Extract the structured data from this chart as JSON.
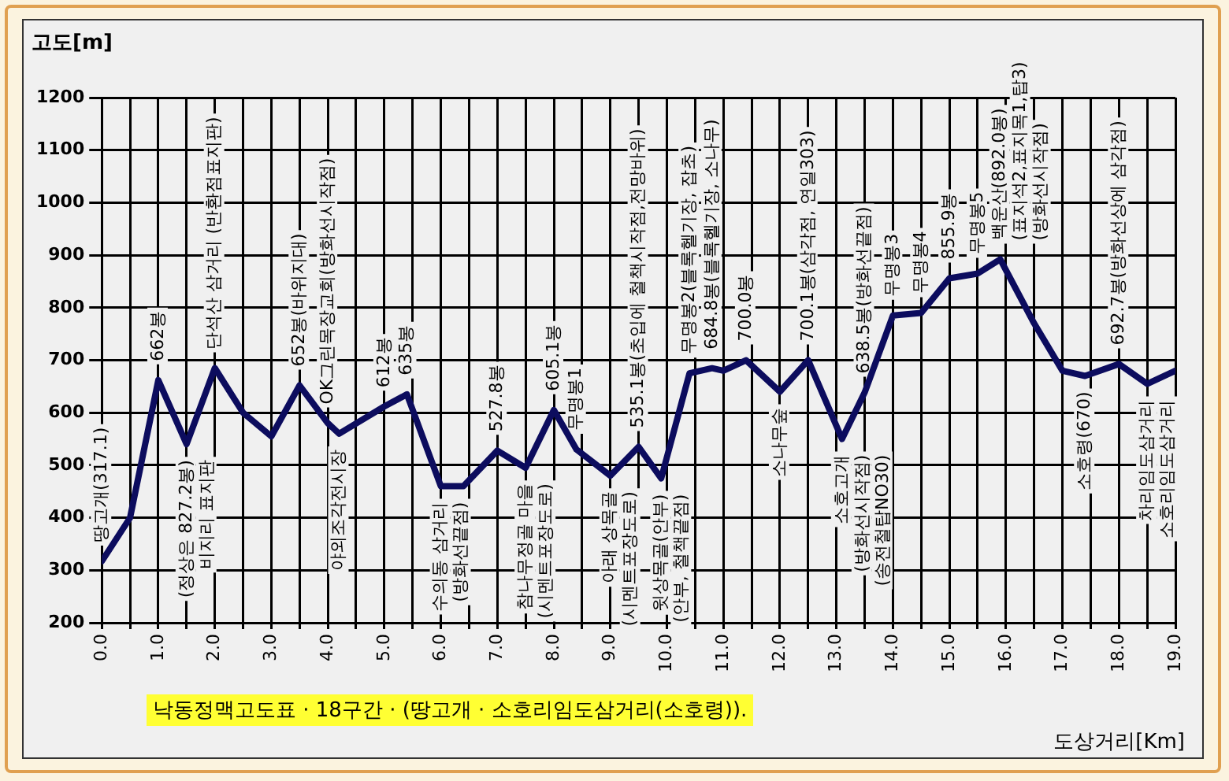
{
  "chart_data": {
    "type": "line",
    "title": "낙동정맥고도표 · 18구간 · (땅고개 · 소호리임도삼거리(소호령)).",
    "xlabel": "도상거리[Km]",
    "ylabel": "고도[m]",
    "x": [
      0,
      0.5,
      1.0,
      1.5,
      2.0,
      2.5,
      3.0,
      3.5,
      4.0,
      4.2,
      5.0,
      5.4,
      6.0,
      6.4,
      7.0,
      7.5,
      8.0,
      8.4,
      9.0,
      9.5,
      9.9,
      10.4,
      10.8,
      11.0,
      11.4,
      12.0,
      12.5,
      13.1,
      13.5,
      14.0,
      14.5,
      15.0,
      15.5,
      15.9,
      16.5,
      17.0,
      17.4,
      18.0,
      18.5,
      19.0
    ],
    "series": [
      {
        "color": "#0c0c5e",
        "values": [
          317.1,
          400,
          662,
          540,
          685,
          600,
          555,
          652,
          580,
          560,
          612,
          635,
          460,
          460,
          527.8,
          495,
          605.1,
          530,
          480,
          535.1,
          475,
          675,
          684.8,
          680,
          700,
          640,
          700.1,
          550,
          638.5,
          785,
          790,
          855.9,
          865,
          892.0,
          770,
          680,
          670,
          692.7,
          655,
          680
        ]
      }
    ],
    "xlim": [
      0,
      19
    ],
    "ylim": [
      200,
      1200
    ],
    "xticks": [
      {
        "value": 0,
        "label": "0.0"
      },
      {
        "value": 0.5,
        "label": null
      },
      {
        "value": 1,
        "label": "1.0"
      },
      {
        "value": 1.5,
        "label": null
      },
      {
        "value": 2,
        "label": "2.0"
      },
      {
        "value": 2.5,
        "label": null
      },
      {
        "value": 3,
        "label": "3.0"
      },
      {
        "value": 3.5,
        "label": null
      },
      {
        "value": 4,
        "label": "4.0"
      },
      {
        "value": 4.5,
        "label": null
      },
      {
        "value": 5,
        "label": "5.0"
      },
      {
        "value": 5.5,
        "label": null
      },
      {
        "value": 6,
        "label": "6.0"
      },
      {
        "value": 6.5,
        "label": null
      },
      {
        "value": 7,
        "label": "7.0"
      },
      {
        "value": 7.5,
        "label": null
      },
      {
        "value": 8,
        "label": "8.0"
      },
      {
        "value": 8.5,
        "label": null
      },
      {
        "value": 9,
        "label": "9.0"
      },
      {
        "value": 9.5,
        "label": null
      },
      {
        "value": 10,
        "label": "10.0"
      },
      {
        "value": 10.5,
        "label": null
      },
      {
        "value": 11,
        "label": "11.0"
      },
      {
        "value": 11.5,
        "label": null
      },
      {
        "value": 12,
        "label": "12.0"
      },
      {
        "value": 12.5,
        "label": null
      },
      {
        "value": 13,
        "label": "13.0"
      },
      {
        "value": 13.5,
        "label": null
      },
      {
        "value": 14,
        "label": "14.0"
      },
      {
        "value": 14.5,
        "label": null
      },
      {
        "value": 15,
        "label": "15.0"
      },
      {
        "value": 15.5,
        "label": null
      },
      {
        "value": 16,
        "label": "16.0"
      },
      {
        "value": 16.5,
        "label": null
      },
      {
        "value": 17,
        "label": "17.0"
      },
      {
        "value": 17.5,
        "label": null
      },
      {
        "value": 18,
        "label": "18.0"
      },
      {
        "value": 18.5,
        "label": null
      },
      {
        "value": 19,
        "label": "19.0"
      }
    ],
    "yticks": [
      200,
      300,
      400,
      500,
      600,
      700,
      800,
      900,
      1000,
      1100,
      1200
    ],
    "grid": true,
    "legend": false,
    "marker": "none",
    "line_style": "solid",
    "annotations": [
      {
        "text": "땅고개(317.1)",
        "x": 0,
        "y": 317.1
      },
      {
        "text": "662봉",
        "x": 1.0,
        "y": 662
      },
      {
        "text": "(정상은 827.2봉)\n비지리 표지판",
        "x": 1.5,
        "y": 540
      },
      {
        "text": "단석산 삼거리 (반환점표지판)",
        "x": 2.0,
        "y": 685
      },
      {
        "text": "652봉(바위지대)",
        "x": 3.5,
        "y": 652
      },
      {
        "text": "OK그린목장교회(방화선시작점)",
        "x": 4.0,
        "y": 580
      },
      {
        "text": "야외조각전시장",
        "x": 4.2,
        "y": 560
      },
      {
        "text": "612봉",
        "x": 5.0,
        "y": 612
      },
      {
        "text": "635봉",
        "x": 5.4,
        "y": 635
      },
      {
        "text": "수의동 삼거리\n(방화선끝점)",
        "x": 6.0,
        "y": 460
      },
      {
        "text": "527.8봉",
        "x": 7.0,
        "y": 527.8
      },
      {
        "text": "참나무정골 마을\n(시멘트포장도로)",
        "x": 7.5,
        "y": 495
      },
      {
        "text": "605.1봉",
        "x": 8.0,
        "y": 605.1
      },
      {
        "text": "무명봉1",
        "x": 8.4,
        "y": 530
      },
      {
        "text": "아래 상목골\n(시멘트포장도로)",
        "x": 9.0,
        "y": 480
      },
      {
        "text": "535.1봉(초입에 철책시작점,전망바위)",
        "x": 9.5,
        "y": 535.1
      },
      {
        "text": "윗상목골(안부)\n(안부, 철책끝점)",
        "x": 9.9,
        "y": 475
      },
      {
        "text": "무명봉2(블록헬기장, 잡초)",
        "x": 10.4,
        "y": 675
      },
      {
        "text": "684.8봉(블록헬기장, 소나무)",
        "x": 10.8,
        "y": 684.8
      },
      {
        "text": "700.0봉",
        "x": 11.4,
        "y": 700
      },
      {
        "text": "소나무숲",
        "x": 12.0,
        "y": 640
      },
      {
        "text": "700.1봉(삼각점, 연일303)",
        "x": 12.5,
        "y": 700.1
      },
      {
        "text": "소호고개\n(방화선시작점)\n(송전철탑NO30)",
        "x": 13.1,
        "y": 550
      },
      {
        "text": "638.5봉(방화선끝점)",
        "x": 13.5,
        "y": 638.5
      },
      {
        "text": "무명봉3",
        "x": 14.0,
        "y": 785
      },
      {
        "text": "무명봉4",
        "x": 14.5,
        "y": 790
      },
      {
        "text": "855.9봉",
        "x": 15.0,
        "y": 855.9
      },
      {
        "text": "무명봉5",
        "x": 15.5,
        "y": 865
      },
      {
        "text": "백운산(892.0봉)\n(표지석2,표지목1,탑3)\n(방화선시작점)",
        "x": 15.9,
        "y": 892.0
      },
      {
        "text": "소호령(670)",
        "x": 17.4,
        "y": 670
      },
      {
        "text": "692.7봉(방화선상에 삼각점)",
        "x": 18.0,
        "y": 692.7
      },
      {
        "text": "차리임도삼거리\n소호리임도삼거리",
        "x": 18.5,
        "y": 655
      }
    ]
  }
}
